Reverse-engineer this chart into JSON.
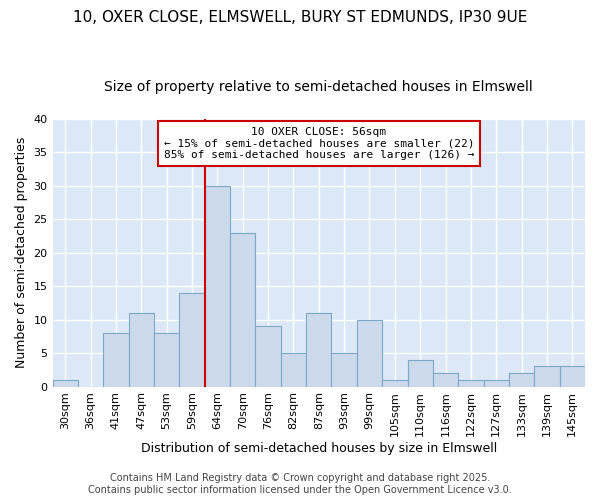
{
  "title_line1": "10, OXER CLOSE, ELMSWELL, BURY ST EDMUNDS, IP30 9UE",
  "title_line2": "Size of property relative to semi-detached houses in Elmswell",
  "xlabel": "Distribution of semi-detached houses by size in Elmswell",
  "ylabel": "Number of semi-detached properties",
  "bar_labels": [
    "30sqm",
    "36sqm",
    "41sqm",
    "47sqm",
    "53sqm",
    "59sqm",
    "64sqm",
    "70sqm",
    "76sqm",
    "82sqm",
    "87sqm",
    "93sqm",
    "99sqm",
    "105sqm",
    "110sqm",
    "116sqm",
    "122sqm",
    "127sqm",
    "133sqm",
    "139sqm",
    "145sqm"
  ],
  "bar_values": [
    1,
    0,
    8,
    11,
    8,
    14,
    30,
    23,
    9,
    5,
    11,
    5,
    10,
    1,
    4,
    2,
    1,
    1,
    2,
    3,
    3
  ],
  "bar_color": "#ccd9ea",
  "bar_edge_color": "#7ba7c8",
  "vline_x": 5.5,
  "vline_color": "#cc0000",
  "annotation_line1": "10 OXER CLOSE: 56sqm",
  "annotation_line2": "← 15% of semi-detached houses are smaller (22)",
  "annotation_line3": "85% of semi-detached houses are larger (126) →",
  "annotation_box_facecolor": "#ffffff",
  "annotation_box_edgecolor": "#cc0000",
  "ylim": [
    0,
    40
  ],
  "yticks": [
    0,
    5,
    10,
    15,
    20,
    25,
    30,
    35,
    40
  ],
  "footer_line1": "Contains HM Land Registry data © Crown copyright and database right 2025.",
  "footer_line2": "Contains public sector information licensed under the Open Government Licence v3.0.",
  "fig_bg_color": "#ffffff",
  "ax_bg_color": "#dce8f5",
  "grid_color": "#ffffff",
  "title_fontsize": 11,
  "subtitle_fontsize": 10,
  "axis_label_fontsize": 9,
  "tick_fontsize": 8,
  "annotation_fontsize": 8,
  "footer_fontsize": 7
}
